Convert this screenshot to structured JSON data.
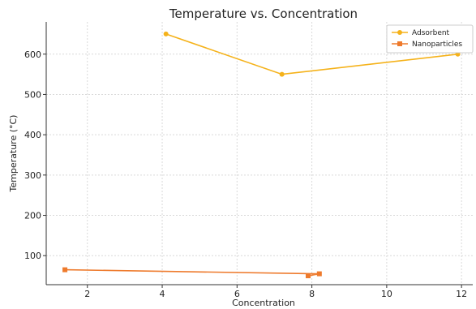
{
  "chart_data": {
    "type": "line",
    "title": "Temperature vs. Concentration",
    "xlabel": "Concentration",
    "ylabel": "Temperature (°C)",
    "xlim": [
      0.9,
      12.3
    ],
    "ylim": [
      28,
      680
    ],
    "xticks": [
      2,
      4,
      6,
      8,
      10,
      12
    ],
    "yticks": [
      100,
      200,
      300,
      400,
      500,
      600
    ],
    "grid": true,
    "legend_position": "top-right",
    "series": [
      {
        "name": "Adsorbent",
        "color": "#f5b21a",
        "marker": "circle",
        "points": [
          {
            "x": 4.1,
            "y": 650
          },
          {
            "x": 7.2,
            "y": 550
          },
          {
            "x": 11.9,
            "y": 600
          }
        ]
      },
      {
        "name": "Nanoparticles",
        "color": "#ee7a2c",
        "marker": "square",
        "points": [
          {
            "x": 1.4,
            "y": 65
          },
          {
            "x": 8.2,
            "y": 55
          },
          {
            "x": 7.9,
            "y": 50
          }
        ]
      }
    ]
  }
}
